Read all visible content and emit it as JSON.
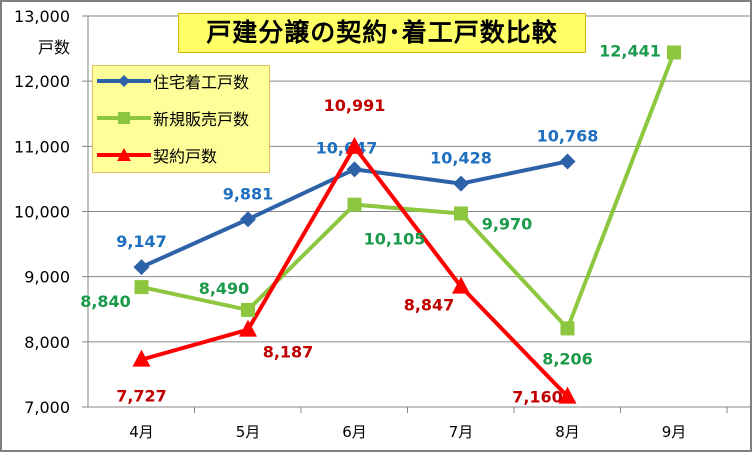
{
  "chart_data": {
    "type": "line",
    "title": "戸建分譲の契約･着工戸数比較",
    "ylabel": "戸数",
    "xlabel": "",
    "ylim": [
      7000,
      13000
    ],
    "yticks": [
      7000,
      8000,
      9000,
      10000,
      11000,
      12000,
      13000
    ],
    "ytick_labels": [
      "7,000",
      "8,000",
      "9,000",
      "10,000",
      "11,000",
      "12,000",
      "13,000"
    ],
    "categories": [
      "4月",
      "5月",
      "6月",
      "7月",
      "8月",
      "9月"
    ],
    "grid": true,
    "legend_position": "top-left",
    "series": [
      {
        "name": "住宅着工戸数",
        "color": "#2E62A8",
        "label_color": "#1F6FC0",
        "marker": "diamond",
        "values": [
          9147,
          9881,
          10647,
          10428,
          10768,
          null
        ],
        "labels": [
          "9,147",
          "9,881",
          "10,647",
          "10,428",
          "10,768",
          null
        ]
      },
      {
        "name": "新規販売戸数",
        "color": "#8DC63F",
        "label_color": "#1A9A4A",
        "marker": "square",
        "values": [
          8840,
          8490,
          10105,
          9970,
          8206,
          12441
        ],
        "labels": [
          "8,840",
          "8,490",
          "10,105",
          "9,970",
          "8,206",
          "12,441"
        ]
      },
      {
        "name": "契約戸数",
        "color": "#FF0000",
        "label_color": "#C00000",
        "marker": "triangle",
        "values": [
          7727,
          8187,
          10991,
          8847,
          7160,
          null
        ],
        "labels": [
          "7,727",
          "8,187",
          "10,991",
          "8,847",
          "7,160",
          null
        ]
      }
    ]
  }
}
